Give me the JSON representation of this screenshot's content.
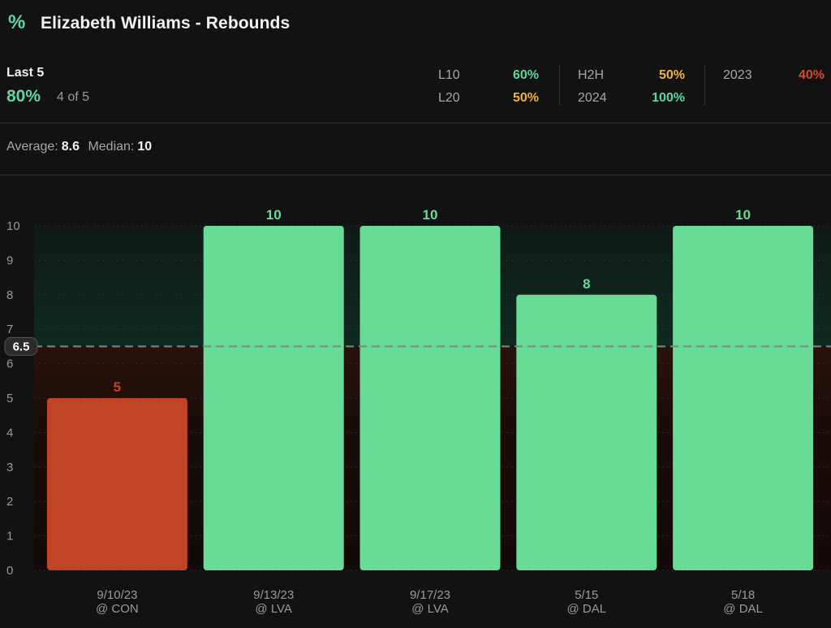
{
  "header": {
    "icon": "percent-icon",
    "title": "Elizabeth Williams - Rebounds"
  },
  "summary": {
    "label": "Last 5",
    "pct": "80%",
    "count": "4 of 5"
  },
  "splits": [
    {
      "label": "L10",
      "value": "60%",
      "color": "#5dd6a0"
    },
    {
      "label": "L20",
      "value": "50%",
      "color": "#f0b43c"
    },
    {
      "label": "H2H",
      "value": "50%",
      "color": "#f0b43c"
    },
    {
      "label": "2024",
      "value": "100%",
      "color": "#5dd6a0"
    },
    {
      "label": "2023",
      "value": "40%",
      "color": "#d9482a"
    }
  ],
  "averages": {
    "average_label": "Average:",
    "average_value": "8.6",
    "median_label": "Median:",
    "median_value": "10"
  },
  "colors": {
    "over": "#68db97",
    "under": "#c14429",
    "line": "#7a8a82"
  },
  "chart_data": {
    "type": "bar",
    "categories": [
      "9/10/23",
      "9/13/23",
      "9/17/23",
      "5/15",
      "5/18"
    ],
    "opponents": [
      "@ CON",
      "@ LVA",
      "@ LVA",
      "@ DAL",
      "@ DAL"
    ],
    "values": [
      5,
      10,
      10,
      8,
      10
    ],
    "line": 6.5,
    "line_label": "6.5",
    "ylim": [
      0,
      10
    ],
    "yticks": [
      0,
      1,
      2,
      3,
      4,
      5,
      6,
      7,
      8,
      9,
      10
    ],
    "grid": true
  }
}
